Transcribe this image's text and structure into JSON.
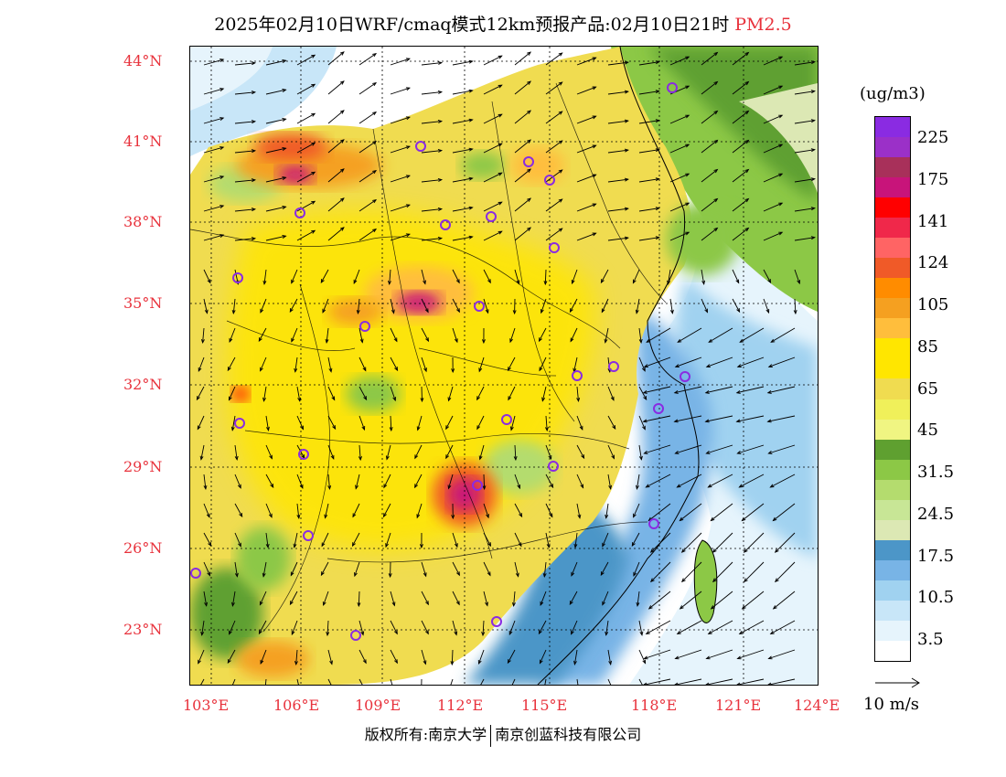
{
  "title": {
    "main": "2025年02月10日WRF/cmaq模式12km预报产品:02月10日21时",
    "pollutant": "PM2.5"
  },
  "lat_labels": [
    "44°N",
    "41°N",
    "38°N",
    "35°N",
    "32°N",
    "29°N",
    "26°N",
    "23°N"
  ],
  "lon_labels": [
    "103°E",
    "106°E",
    "109°E",
    "112°E",
    "115°E",
    "118°E",
    "121°E",
    "124°E"
  ],
  "legend": {
    "unit": "(ug/m3)",
    "labels": [
      "225",
      "175",
      "141",
      "124",
      "105",
      "85",
      "65",
      "45",
      "31.5",
      "24.5",
      "17.5",
      "10.5",
      "3.5"
    ],
    "colors": [
      "#8a2be2",
      "#9b30c8",
      "#a8305a",
      "#c8147a",
      "#ff0000",
      "#f0284a",
      "#ff6464",
      "#f05a28",
      "#ff8c00",
      "#f5a020",
      "#ffbe3c",
      "#ffe600",
      "#ffe600",
      "#f0dc50",
      "#f0f05a",
      "#f0f582",
      "#5fa030",
      "#8cc846",
      "#b4dc6e",
      "#c8e696",
      "#dce8b4",
      "#4c96c8",
      "#78b4e6",
      "#a0d2f0",
      "#c8e6f8",
      "#e6f4fc",
      "#ffffff"
    ]
  },
  "wind_reference": {
    "label": "10 m/s"
  },
  "copyright": {
    "left": "版权所有:南京大学",
    "right": "南京创蓝科技有限公司"
  }
}
